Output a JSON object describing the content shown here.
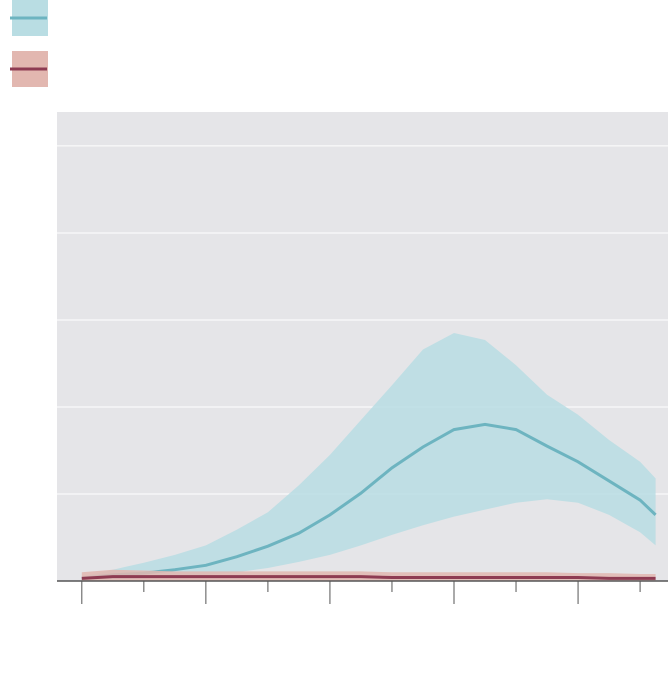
{
  "chart_data": {
    "type": "line",
    "legend": "top-left",
    "grid": true,
    "xlim": [
      -0.4,
      9.45
    ],
    "ylim": [
      0,
      5.39
    ],
    "xticks": [
      0,
      1,
      2,
      3,
      4,
      5,
      6,
      7,
      8,
      9
    ],
    "yticks": [
      0,
      1,
      2,
      3,
      4,
      5
    ],
    "x": [
      0,
      0.5,
      1,
      1.5,
      2,
      2.5,
      3,
      3.5,
      4,
      4.5,
      5,
      5.5,
      6,
      6.5,
      7,
      7.5,
      8,
      8.5,
      9,
      9.25
    ],
    "series": [
      {
        "color": "#6db4c0",
        "band_color": "#b9dde3",
        "values": [
          0.03,
          0.07,
          0.09,
          0.13,
          0.18,
          0.28,
          0.4,
          0.55,
          0.76,
          1.01,
          1.3,
          1.54,
          1.74,
          1.8,
          1.74,
          1.55,
          1.37,
          1.15,
          0.93,
          0.76
        ],
        "upper": [
          0.05,
          0.13,
          0.21,
          0.3,
          0.41,
          0.59,
          0.79,
          1.1,
          1.45,
          1.85,
          2.25,
          2.66,
          2.85,
          2.77,
          2.48,
          2.14,
          1.91,
          1.62,
          1.37,
          1.18
        ],
        "lower": [
          0.01,
          0.02,
          0.03,
          0.05,
          0.07,
          0.1,
          0.15,
          0.22,
          0.3,
          0.41,
          0.53,
          0.64,
          0.74,
          0.82,
          0.9,
          0.94,
          0.9,
          0.76,
          0.56,
          0.41
        ]
      },
      {
        "color": "#8e3b52",
        "band_color": "#e2b7b0",
        "values": [
          0.03,
          0.05,
          0.05,
          0.05,
          0.05,
          0.05,
          0.05,
          0.05,
          0.05,
          0.05,
          0.04,
          0.04,
          0.04,
          0.04,
          0.04,
          0.04,
          0.04,
          0.03,
          0.03,
          0.03
        ],
        "upper": [
          0.1,
          0.13,
          0.12,
          0.11,
          0.11,
          0.11,
          0.11,
          0.11,
          0.11,
          0.11,
          0.1,
          0.1,
          0.1,
          0.1,
          0.1,
          0.1,
          0.09,
          0.09,
          0.08,
          0.08
        ],
        "lower": [
          0.0,
          0.0,
          0.0,
          0.0,
          0.0,
          0.0,
          0.0,
          0.0,
          0.0,
          0.0,
          0.0,
          0.0,
          0.0,
          0.0,
          0.0,
          0.0,
          0.0,
          0.0,
          0.0,
          0.0
        ]
      }
    ]
  }
}
